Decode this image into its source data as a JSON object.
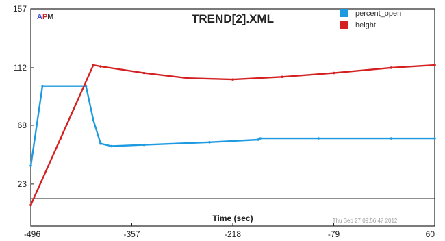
{
  "chart_data": {
    "type": "line",
    "title": "TREND[2].XML",
    "xlabel": "Time (sec)",
    "ylabel": "",
    "xlim": [
      -496,
      60
    ],
    "ylim": [
      -9,
      157
    ],
    "grid": false,
    "legend_position": "top-right",
    "x_ticks": [
      -496,
      -357,
      -218,
      -79,
      60
    ],
    "y_ticks": [
      23,
      68,
      112,
      157
    ],
    "timestamp": "Thu Sep 27 09:56:47 2012",
    "logo": {
      "letters": [
        {
          "text": "A",
          "color": "#3a4fcf"
        },
        {
          "text": "P",
          "color": "#d22020"
        },
        {
          "text": "M",
          "color": "#333333"
        }
      ]
    },
    "series": [
      {
        "name": "percent_open",
        "color": "#1e9be0",
        "points": [
          [
            -496,
            37
          ],
          [
            -480,
            98
          ],
          [
            -420,
            98
          ],
          [
            -410,
            72
          ],
          [
            -400,
            54
          ],
          [
            -385,
            52
          ],
          [
            -340,
            53
          ],
          [
            -250,
            55
          ],
          [
            -183,
            57
          ],
          [
            -180,
            58
          ],
          [
            -100,
            58
          ],
          [
            0,
            58
          ],
          [
            60,
            58
          ]
        ]
      },
      {
        "name": "height",
        "color": "#d42020",
        "points": [
          [
            -496,
            7
          ],
          [
            -455,
            58
          ],
          [
            -410,
            114
          ],
          [
            -400,
            113
          ],
          [
            -340,
            108
          ],
          [
            -280,
            104
          ],
          [
            -218,
            103
          ],
          [
            -150,
            105
          ],
          [
            -79,
            108
          ],
          [
            0,
            112
          ],
          [
            60,
            114
          ]
        ]
      }
    ]
  }
}
